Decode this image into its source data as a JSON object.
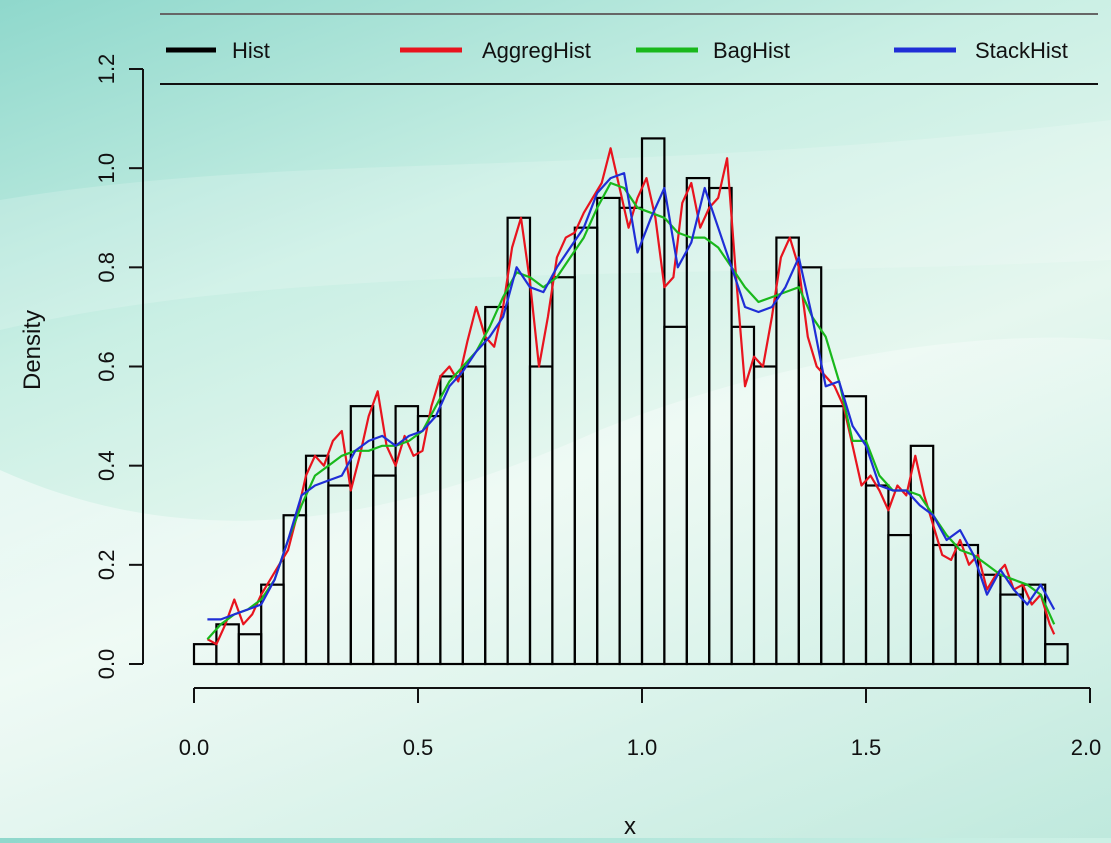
{
  "chart_data": {
    "type": "histogram",
    "xlabel": "x",
    "ylabel": "Density",
    "xlim": [
      0.0,
      2.0
    ],
    "ylim": [
      0.0,
      1.2
    ],
    "x_ticks": [
      "0.0",
      "0.5",
      "1.0",
      "1.5",
      "2.0"
    ],
    "y_ticks": [
      "0.0",
      "0.2",
      "0.4",
      "0.6",
      "0.8",
      "1.0",
      "1.2"
    ],
    "legend_position": "top",
    "bin_width": 0.05,
    "histogram": {
      "name": "Hist",
      "color": "#000000",
      "bin_start": 0.0,
      "densities": [
        0.04,
        0.08,
        0.06,
        0.16,
        0.3,
        0.42,
        0.36,
        0.52,
        0.38,
        0.52,
        0.5,
        0.58,
        0.6,
        0.72,
        0.9,
        0.6,
        0.78,
        0.88,
        0.94,
        0.92,
        1.06,
        0.68,
        0.98,
        0.96,
        0.68,
        0.6,
        0.86,
        0.8,
        0.52,
        0.54,
        0.36,
        0.26,
        0.44,
        0.24,
        0.24,
        0.18,
        0.14,
        0.16,
        0.04
      ]
    },
    "series": [
      {
        "name": "AggregHist",
        "color": "#e8141e",
        "x": [
          0.03,
          0.05,
          0.07,
          0.09,
          0.11,
          0.13,
          0.15,
          0.17,
          0.19,
          0.21,
          0.23,
          0.25,
          0.27,
          0.29,
          0.31,
          0.33,
          0.35,
          0.37,
          0.39,
          0.41,
          0.43,
          0.45,
          0.47,
          0.49,
          0.51,
          0.53,
          0.55,
          0.57,
          0.59,
          0.61,
          0.63,
          0.65,
          0.67,
          0.69,
          0.71,
          0.73,
          0.75,
          0.77,
          0.79,
          0.81,
          0.83,
          0.85,
          0.87,
          0.89,
          0.91,
          0.93,
          0.95,
          0.97,
          0.99,
          1.01,
          1.03,
          1.05,
          1.07,
          1.09,
          1.11,
          1.13,
          1.15,
          1.17,
          1.19,
          1.21,
          1.23,
          1.25,
          1.27,
          1.29,
          1.31,
          1.33,
          1.35,
          1.37,
          1.39,
          1.41,
          1.43,
          1.45,
          1.47,
          1.49,
          1.51,
          1.53,
          1.55,
          1.57,
          1.59,
          1.61,
          1.63,
          1.65,
          1.67,
          1.69,
          1.71,
          1.73,
          1.75,
          1.77,
          1.79,
          1.81,
          1.83,
          1.85,
          1.87,
          1.89,
          1.91,
          1.92
        ],
        "y": [
          0.05,
          0.04,
          0.08,
          0.13,
          0.08,
          0.1,
          0.14,
          0.17,
          0.2,
          0.23,
          0.3,
          0.38,
          0.42,
          0.4,
          0.45,
          0.47,
          0.35,
          0.42,
          0.5,
          0.55,
          0.44,
          0.4,
          0.46,
          0.42,
          0.43,
          0.52,
          0.58,
          0.6,
          0.57,
          0.65,
          0.72,
          0.66,
          0.64,
          0.72,
          0.84,
          0.9,
          0.77,
          0.6,
          0.7,
          0.82,
          0.86,
          0.87,
          0.91,
          0.94,
          0.97,
          1.04,
          0.96,
          0.88,
          0.94,
          0.98,
          0.9,
          0.76,
          0.78,
          0.93,
          0.97,
          0.88,
          0.92,
          0.94,
          1.02,
          0.78,
          0.56,
          0.62,
          0.6,
          0.7,
          0.82,
          0.86,
          0.8,
          0.66,
          0.6,
          0.58,
          0.56,
          0.52,
          0.44,
          0.36,
          0.38,
          0.35,
          0.31,
          0.36,
          0.34,
          0.42,
          0.34,
          0.28,
          0.22,
          0.21,
          0.25,
          0.2,
          0.22,
          0.15,
          0.18,
          0.2,
          0.15,
          0.16,
          0.12,
          0.14,
          0.08,
          0.06
        ]
      },
      {
        "name": "BagHist",
        "color": "#19b81c",
        "x": [
          0.03,
          0.06,
          0.09,
          0.12,
          0.15,
          0.18,
          0.21,
          0.24,
          0.27,
          0.3,
          0.33,
          0.36,
          0.39,
          0.42,
          0.45,
          0.48,
          0.51,
          0.54,
          0.57,
          0.6,
          0.63,
          0.66,
          0.69,
          0.72,
          0.75,
          0.78,
          0.81,
          0.84,
          0.87,
          0.9,
          0.93,
          0.96,
          0.99,
          1.02,
          1.05,
          1.08,
          1.11,
          1.14,
          1.17,
          1.2,
          1.23,
          1.26,
          1.29,
          1.32,
          1.35,
          1.38,
          1.41,
          1.44,
          1.47,
          1.5,
          1.53,
          1.56,
          1.59,
          1.62,
          1.65,
          1.68,
          1.71,
          1.74,
          1.77,
          1.8,
          1.83,
          1.86,
          1.89,
          1.92
        ],
        "y": [
          0.05,
          0.08,
          0.1,
          0.11,
          0.13,
          0.17,
          0.25,
          0.32,
          0.38,
          0.4,
          0.42,
          0.43,
          0.43,
          0.44,
          0.44,
          0.45,
          0.47,
          0.52,
          0.57,
          0.6,
          0.63,
          0.68,
          0.74,
          0.79,
          0.78,
          0.76,
          0.78,
          0.82,
          0.86,
          0.92,
          0.97,
          0.96,
          0.92,
          0.91,
          0.9,
          0.87,
          0.86,
          0.86,
          0.84,
          0.8,
          0.76,
          0.73,
          0.74,
          0.75,
          0.76,
          0.7,
          0.66,
          0.57,
          0.45,
          0.45,
          0.38,
          0.35,
          0.35,
          0.34,
          0.3,
          0.26,
          0.23,
          0.22,
          0.2,
          0.18,
          0.17,
          0.16,
          0.14,
          0.08
        ]
      },
      {
        "name": "StackHist",
        "color": "#1f2ed6",
        "x": [
          0.03,
          0.06,
          0.09,
          0.12,
          0.15,
          0.18,
          0.21,
          0.24,
          0.27,
          0.3,
          0.33,
          0.36,
          0.39,
          0.42,
          0.45,
          0.48,
          0.51,
          0.54,
          0.57,
          0.6,
          0.63,
          0.66,
          0.69,
          0.72,
          0.75,
          0.78,
          0.81,
          0.84,
          0.87,
          0.9,
          0.93,
          0.96,
          0.99,
          1.02,
          1.05,
          1.08,
          1.11,
          1.14,
          1.17,
          1.2,
          1.23,
          1.26,
          1.29,
          1.32,
          1.35,
          1.38,
          1.41,
          1.44,
          1.47,
          1.5,
          1.53,
          1.56,
          1.59,
          1.62,
          1.65,
          1.68,
          1.71,
          1.74,
          1.77,
          1.8,
          1.83,
          1.86,
          1.89,
          1.92
        ],
        "y": [
          0.09,
          0.09,
          0.1,
          0.11,
          0.12,
          0.17,
          0.25,
          0.34,
          0.36,
          0.37,
          0.38,
          0.43,
          0.45,
          0.46,
          0.44,
          0.46,
          0.47,
          0.5,
          0.56,
          0.59,
          0.63,
          0.66,
          0.7,
          0.8,
          0.76,
          0.75,
          0.8,
          0.84,
          0.88,
          0.95,
          0.98,
          0.99,
          0.83,
          0.9,
          0.96,
          0.8,
          0.85,
          0.96,
          0.88,
          0.8,
          0.72,
          0.71,
          0.72,
          0.76,
          0.82,
          0.7,
          0.56,
          0.57,
          0.48,
          0.44,
          0.36,
          0.35,
          0.35,
          0.32,
          0.3,
          0.25,
          0.27,
          0.22,
          0.14,
          0.19,
          0.15,
          0.12,
          0.16,
          0.11
        ]
      }
    ]
  }
}
